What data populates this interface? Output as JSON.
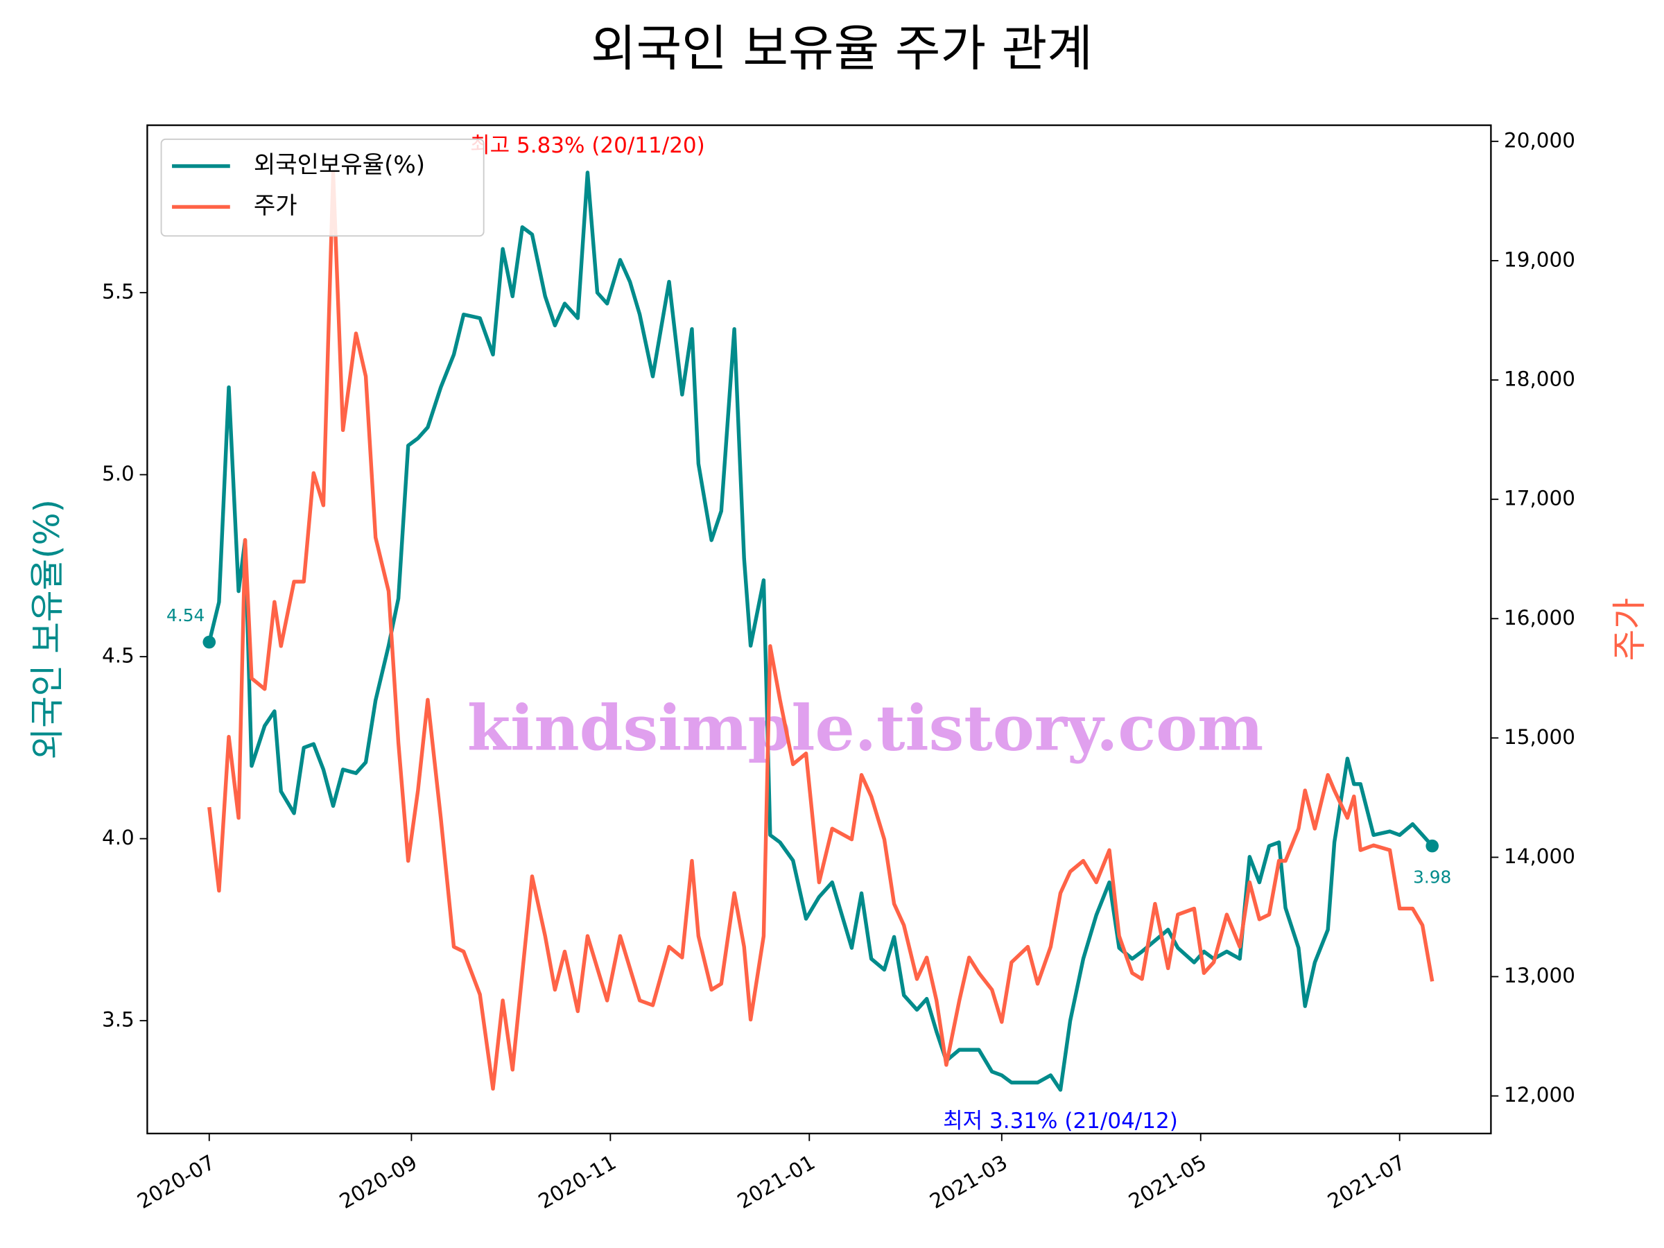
{
  "chart_data": {
    "type": "line",
    "title": "외국인 보유율 주가 관계",
    "ylabel": "외국인 보유율(%)",
    "y2label": "주가",
    "ylabel_color": "#008b8b",
    "y2label_color": "#ff6347",
    "legend": "upper left",
    "watermark": "kindsimple.tistory.com",
    "watermark_color": "#e0a0ee",
    "xlim": [
      "2020-06-12",
      "2021-07-29"
    ],
    "xticks": [
      {
        "value": "2020-07-01",
        "label": "2020-07"
      },
      {
        "value": "2020-09-01",
        "label": "2020-09"
      },
      {
        "value": "2020-11-01",
        "label": "2020-11"
      },
      {
        "value": "2021-01-01",
        "label": "2021-01"
      },
      {
        "value": "2021-03-01",
        "label": "2021-03"
      },
      {
        "value": "2021-05-01",
        "label": "2021-05"
      },
      {
        "value": "2021-07-01",
        "label": "2021-07"
      }
    ],
    "ylim": [
      3.19,
      5.96
    ],
    "yticks": [
      3.5,
      {
        "value": 4,
        "label": "4.0"
      },
      4.5,
      {
        "value": 5,
        "label": "5.0"
      },
      5.5
    ],
    "y2lim": [
      11685,
      20135
    ],
    "y2ticks": [
      {
        "value": 12000,
        "label": "12,000"
      },
      {
        "value": 13000,
        "label": "13,000"
      },
      {
        "value": 14000,
        "label": "14,000"
      },
      {
        "value": 15000,
        "label": "15,000"
      },
      {
        "value": 16000,
        "label": "16,000"
      },
      {
        "value": 17000,
        "label": "17,000"
      },
      {
        "value": 18000,
        "label": "18,000"
      },
      {
        "value": 19000,
        "label": "19,000"
      },
      {
        "value": 20000,
        "label": "20,000"
      }
    ],
    "x": [
      "2020-07-01",
      "2020-07-04",
      "2020-07-07",
      "2020-07-10",
      "2020-07-12",
      "2020-07-14",
      "2020-07-18",
      "2020-07-21",
      "2020-07-23",
      "2020-07-27",
      "2020-07-30",
      "2020-08-02",
      "2020-08-05",
      "2020-08-08",
      "2020-08-11",
      "2020-08-15",
      "2020-08-18",
      "2020-08-21",
      "2020-08-25",
      "2020-08-28",
      "2020-08-31",
      "2020-09-03",
      "2020-09-06",
      "2020-09-10",
      "2020-09-14",
      "2020-09-17",
      "2020-09-22",
      "2020-09-26",
      "2020-09-29",
      "2020-10-02",
      "2020-10-05",
      "2020-10-08",
      "2020-10-12",
      "2020-10-15",
      "2020-10-18",
      "2020-10-22",
      "2020-10-25",
      "2020-10-28",
      "2020-10-31",
      "2020-11-04",
      "2020-11-07",
      "2020-11-10",
      "2020-11-14",
      "2020-11-19",
      "2020-11-23",
      "2020-11-26",
      "2020-11-28",
      "2020-12-02",
      "2020-12-05",
      "2020-12-09",
      "2020-12-12",
      "2020-12-14",
      "2020-12-18",
      "2020-12-20",
      "2020-12-23",
      "2020-12-27",
      "2020-12-31",
      "2021-01-04",
      "2021-01-08",
      "2021-01-14",
      "2021-01-17",
      "2021-01-20",
      "2021-01-24",
      "2021-01-27",
      "2021-01-30",
      "2021-02-03",
      "2021-02-06",
      "2021-02-09",
      "2021-02-12",
      "2021-02-16",
      "2021-02-19",
      "2021-02-22",
      "2021-02-26",
      "2021-03-01",
      "2021-03-04",
      "2021-03-09",
      "2021-03-12",
      "2021-03-16",
      "2021-03-19",
      "2021-03-22",
      "2021-03-26",
      "2021-03-30",
      "2021-04-03",
      "2021-04-06",
      "2021-04-10",
      "2021-04-13",
      "2021-04-17",
      "2021-04-21",
      "2021-04-24",
      "2021-04-29",
      "2021-05-02",
      "2021-05-05",
      "2021-05-09",
      "2021-05-13",
      "2021-05-16",
      "2021-05-19",
      "2021-05-22",
      "2021-05-25",
      "2021-05-27",
      "2021-05-31",
      "2021-06-02",
      "2021-06-05",
      "2021-06-09",
      "2021-06-11",
      "2021-06-15",
      "2021-06-17",
      "2021-06-19",
      "2021-06-23",
      "2021-06-28",
      "2021-07-01",
      "2021-07-05",
      "2021-07-08",
      "2021-07-11"
    ],
    "series": [
      {
        "name": "외국인보유율(%)",
        "color": "#008b8b",
        "values": [
          4.54,
          4.65,
          5.24,
          4.68,
          4.82,
          4.2,
          4.31,
          4.35,
          4.13,
          4.07,
          4.25,
          4.26,
          4.19,
          4.09,
          4.19,
          4.18,
          4.21,
          4.38,
          4.53,
          4.66,
          5.08,
          5.1,
          5.13,
          5.24,
          5.33,
          5.44,
          5.43,
          5.33,
          5.62,
          5.49,
          5.68,
          5.66,
          5.49,
          5.41,
          5.47,
          5.43,
          5.83,
          5.5,
          5.47,
          5.59,
          5.53,
          5.44,
          5.27,
          5.53,
          5.22,
          5.4,
          5.03,
          4.82,
          4.9,
          5.4,
          4.77,
          4.53,
          4.71,
          4.01,
          3.99,
          3.94,
          3.78,
          3.84,
          3.88,
          3.7,
          3.85,
          3.67,
          3.64,
          3.73,
          3.57,
          3.53,
          3.56,
          3.47,
          3.39,
          3.42,
          3.42,
          3.42,
          3.36,
          3.35,
          3.33,
          3.33,
          3.33,
          3.35,
          3.31,
          3.5,
          3.67,
          3.79,
          3.88,
          3.7,
          3.67,
          3.69,
          3.72,
          3.75,
          3.7,
          3.66,
          3.69,
          3.67,
          3.69,
          3.67,
          3.95,
          3.88,
          3.98,
          3.99,
          3.81,
          3.7,
          3.54,
          3.66,
          3.75,
          3.99,
          4.22,
          4.15,
          4.15,
          4.01,
          4.02,
          4.01,
          4.04,
          4.01,
          3.98
        ]
      },
      {
        "name": "주가",
        "color": "#ff6347",
        "axis": "y2",
        "values": [
          14420,
          13720,
          15010,
          14330,
          16660,
          15500,
          15410,
          16140,
          15770,
          16310,
          16310,
          17220,
          16950,
          19740,
          17580,
          18390,
          18030,
          16680,
          16230,
          14960,
          13970,
          14560,
          15320,
          14330,
          13250,
          13210,
          12850,
          12060,
          12800,
          12220,
          13030,
          13840,
          13340,
          12890,
          13210,
          12710,
          13340,
          13070,
          12800,
          13340,
          13070,
          12800,
          12760,
          13250,
          13160,
          13970,
          13340,
          12890,
          12940,
          13700,
          13250,
          12640,
          13340,
          15770,
          15320,
          14780,
          14870,
          13790,
          14240,
          14150,
          14690,
          14510,
          14150,
          13610,
          13430,
          12980,
          13160,
          12800,
          12260,
          12800,
          13160,
          13030,
          12890,
          12620,
          13120,
          13250,
          12940,
          13250,
          13700,
          13880,
          13970,
          13790,
          14060,
          13340,
          13030,
          12980,
          13610,
          13070,
          13520,
          13570,
          13030,
          13120,
          13520,
          13250,
          13790,
          13480,
          13520,
          13970,
          13970,
          14240,
          14560,
          14240,
          14690,
          14560,
          14330,
          14510,
          14060,
          14100,
          14060,
          13570,
          13570,
          13430,
          12960
        ]
      }
    ],
    "annotations": [
      {
        "text": "최고 5.83% (20/11/20)",
        "x": "2020-10-25",
        "y": 5.83,
        "color": "#ff0000",
        "position": "above"
      },
      {
        "text": "최저 3.31% (21/04/12)",
        "x": "2021-03-19",
        "y": 3.31,
        "color": "#0000ff",
        "position": "below"
      },
      {
        "text": "4.54",
        "x": "2020-07-01",
        "y": 4.54,
        "color": "#008b8b",
        "position": "left"
      },
      {
        "text": "3.98",
        "x": "2021-07-11",
        "y": 3.98,
        "color": "#008b8b",
        "position": "below"
      }
    ]
  }
}
